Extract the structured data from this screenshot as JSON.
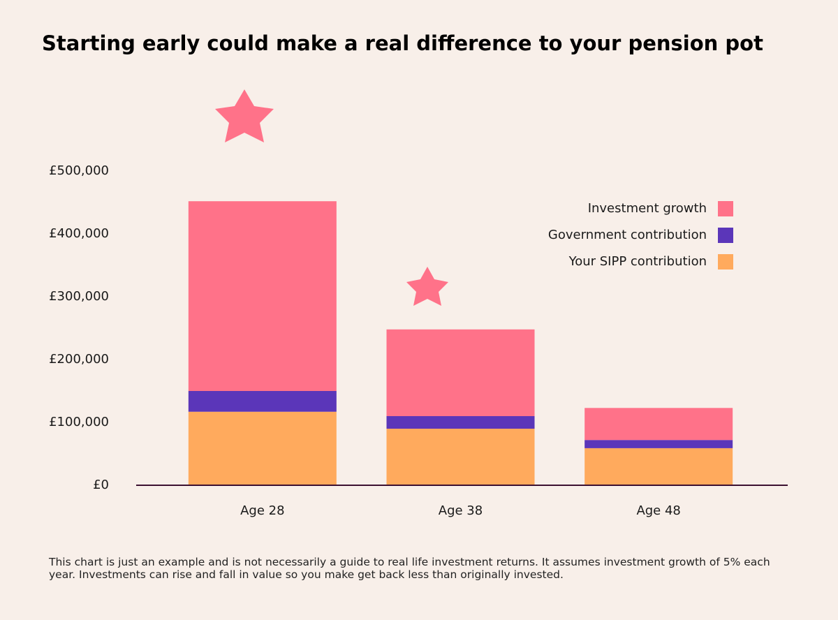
{
  "chart_data": {
    "type": "stacked-bar",
    "title": "Starting early could make a real difference to your pension pot",
    "categories": [
      "Age 28",
      "Age 38",
      "Age 48"
    ],
    "series": [
      {
        "name": "Investment growth",
        "color": "#ff7289",
        "values": [
          302000,
          138000,
          51000
        ]
      },
      {
        "name": "Government contribution",
        "color": "#5b36b9",
        "values": [
          33000,
          20000,
          13000
        ]
      },
      {
        "name": "Your SIPP contribution",
        "color": "#ffaa5d",
        "values": [
          117000,
          90000,
          59000
        ]
      }
    ],
    "ylim": [
      0,
      500000
    ],
    "yticks": [
      {
        "value": 0,
        "label": "£0"
      },
      {
        "value": 100000,
        "label": "£100,000"
      },
      {
        "value": 200000,
        "label": "£200,000"
      },
      {
        "value": 300000,
        "label": "£300,000"
      },
      {
        "value": 400000,
        "label": "£400,000"
      },
      {
        "value": 500000,
        "label": "£500,000"
      }
    ],
    "legend": "top-right",
    "footnote": "This chart is just an example and is not necessarily a guide to real life investment returns. It assumes investment growth of 5% each year. Investments can rise and fall in value so you make get back less than originally invested."
  }
}
